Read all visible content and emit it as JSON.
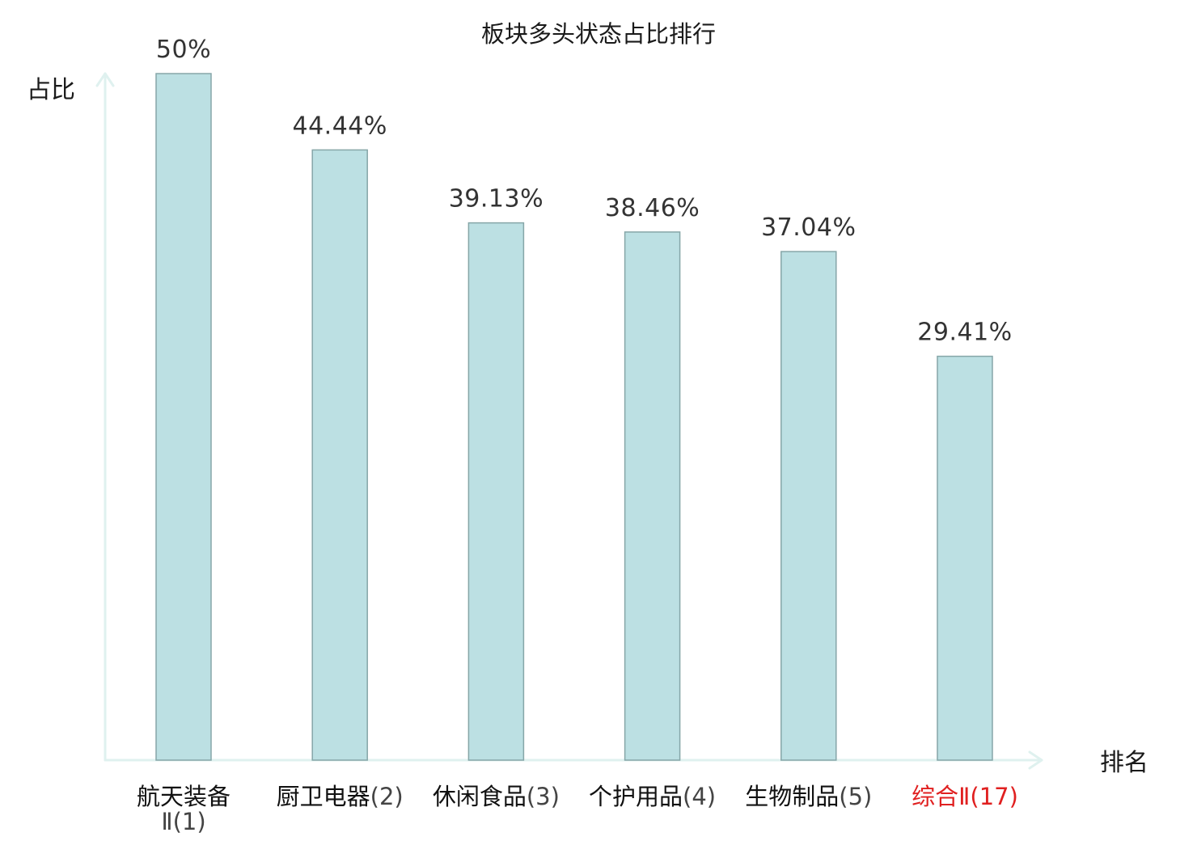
{
  "chart_data": {
    "type": "bar",
    "title": "板块多头状态占比排行",
    "ylabel": "占比",
    "xlabel": "排名",
    "ylim": [
      0,
      50
    ],
    "categories": [
      {
        "name": "航天装备Ⅱ",
        "rank": "(1)",
        "highlight": false
      },
      {
        "name": "厨卫电器",
        "rank": "(2)",
        "highlight": false
      },
      {
        "name": "休闲食品",
        "rank": "(3)",
        "highlight": false
      },
      {
        "name": "个护用品",
        "rank": "(4)",
        "highlight": false
      },
      {
        "name": "生物制品",
        "rank": "(5)",
        "highlight": false
      },
      {
        "name": "综合Ⅱ",
        "rank": "(17)",
        "highlight": true
      }
    ],
    "values": [
      50,
      44.44,
      39.13,
      38.46,
      37.04,
      29.41
    ],
    "value_labels": [
      "50%",
      "44.44%",
      "39.13%",
      "38.46%",
      "37.04%",
      "29.41%"
    ],
    "colors": {
      "bar_fill": "#bce0e3",
      "bar_stroke": "#86a6a8",
      "axis": "#dff1ef",
      "highlight_label": "#e02020"
    }
  }
}
